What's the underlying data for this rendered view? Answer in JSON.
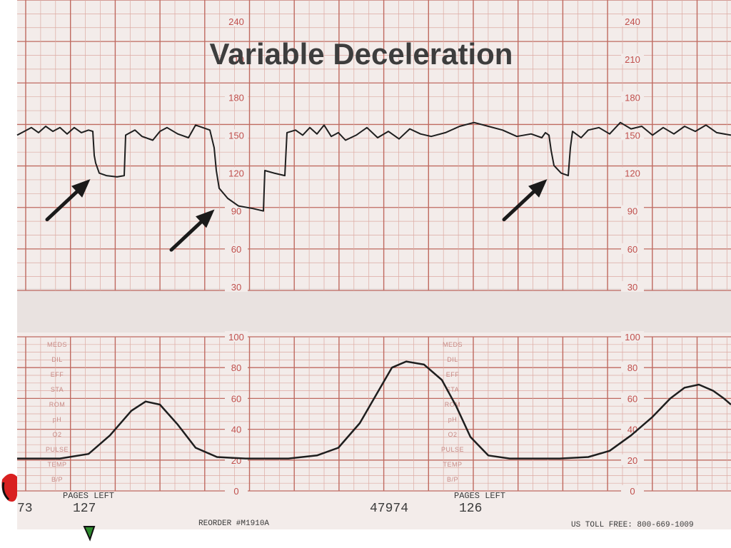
{
  "title": "Variable Deceleration",
  "colors": {
    "paper": "#f3ecea",
    "grid_minor": "#dcaaa2",
    "grid_major": "#bf6a60",
    "trace": "#1e1e1e",
    "scale_text": "#c0504d",
    "arrow": "#1a1a1a"
  },
  "chart_data": [
    {
      "type": "line",
      "name": "fetal-heart-rate",
      "yticks": [
        30,
        60,
        90,
        120,
        150,
        180,
        210,
        240
      ],
      "ylim": [
        30,
        240
      ],
      "xlim": [
        0,
        1
      ],
      "grid": true,
      "series": [
        {
          "points": [
            [
              0.0,
              150
            ],
            [
              0.01,
              153
            ],
            [
              0.02,
              156
            ],
            [
              0.03,
              152
            ],
            [
              0.04,
              157
            ],
            [
              0.05,
              153
            ],
            [
              0.06,
              156
            ],
            [
              0.07,
              151
            ],
            [
              0.08,
              156
            ],
            [
              0.09,
              152
            ],
            [
              0.1,
              154
            ],
            [
              0.106,
              153
            ],
            [
              0.108,
              134
            ],
            [
              0.11,
              128
            ],
            [
              0.115,
              120
            ],
            [
              0.125,
              118
            ],
            [
              0.14,
              117
            ],
            [
              0.15,
              118
            ],
            [
              0.152,
              150
            ],
            [
              0.165,
              154
            ],
            [
              0.175,
              149
            ],
            [
              0.19,
              146
            ],
            [
              0.2,
              153
            ],
            [
              0.21,
              156
            ],
            [
              0.225,
              151
            ],
            [
              0.24,
              148
            ],
            [
              0.25,
              158
            ],
            [
              0.26,
              156
            ],
            [
              0.27,
              154
            ],
            [
              0.276,
              140
            ],
            [
              0.279,
              122
            ],
            [
              0.283,
              108
            ],
            [
              0.295,
              100
            ],
            [
              0.31,
              94
            ],
            [
              0.33,
              92
            ],
            [
              0.345,
              90
            ],
            [
              0.347,
              122
            ],
            [
              0.36,
              120
            ],
            [
              0.375,
              118
            ],
            [
              0.378,
              152
            ],
            [
              0.39,
              154
            ],
            [
              0.4,
              150
            ],
            [
              0.41,
              156
            ],
            [
              0.42,
              151
            ],
            [
              0.43,
              158
            ],
            [
              0.44,
              149
            ],
            [
              0.45,
              152
            ],
            [
              0.46,
              146
            ],
            [
              0.475,
              150
            ],
            [
              0.49,
              156
            ],
            [
              0.505,
              148
            ],
            [
              0.52,
              153
            ],
            [
              0.535,
              147
            ],
            [
              0.55,
              155
            ],
            [
              0.565,
              151
            ],
            [
              0.58,
              149
            ],
            [
              0.6,
              152
            ],
            [
              0.62,
              157
            ],
            [
              0.64,
              160
            ],
            [
              0.66,
              157
            ],
            [
              0.68,
              154
            ],
            [
              0.7,
              149
            ],
            [
              0.72,
              151
            ],
            [
              0.735,
              148
            ],
            [
              0.74,
              152
            ],
            [
              0.745,
              150
            ],
            [
              0.748,
              138
            ],
            [
              0.752,
              126
            ],
            [
              0.762,
              120
            ],
            [
              0.772,
              118
            ],
            [
              0.775,
              140
            ],
            [
              0.778,
              153
            ],
            [
              0.79,
              148
            ],
            [
              0.8,
              154
            ],
            [
              0.815,
              156
            ],
            [
              0.83,
              151
            ],
            [
              0.845,
              160
            ],
            [
              0.86,
              155
            ],
            [
              0.875,
              157
            ],
            [
              0.89,
              150
            ],
            [
              0.905,
              156
            ],
            [
              0.92,
              151
            ],
            [
              0.935,
              157
            ],
            [
              0.95,
              153
            ],
            [
              0.965,
              158
            ],
            [
              0.98,
              152
            ],
            [
              1.0,
              150
            ]
          ]
        }
      ]
    },
    {
      "type": "line",
      "name": "uterine-activity",
      "yticks": [
        0,
        20,
        40,
        60,
        80,
        100
      ],
      "ylim": [
        0,
        100
      ],
      "xlim": [
        0,
        1
      ],
      "grid": true,
      "series": [
        {
          "points": [
            [
              0.0,
              21
            ],
            [
              0.06,
              21
            ],
            [
              0.1,
              24
            ],
            [
              0.13,
              36
            ],
            [
              0.16,
              52
            ],
            [
              0.18,
              58
            ],
            [
              0.2,
              56
            ],
            [
              0.225,
              43
            ],
            [
              0.25,
              28
            ],
            [
              0.28,
              22
            ],
            [
              0.32,
              21
            ],
            [
              0.38,
              21
            ],
            [
              0.42,
              23
            ],
            [
              0.45,
              28
            ],
            [
              0.48,
              44
            ],
            [
              0.505,
              64
            ],
            [
              0.525,
              80
            ],
            [
              0.545,
              84
            ],
            [
              0.57,
              82
            ],
            [
              0.595,
              72
            ],
            [
              0.615,
              55
            ],
            [
              0.635,
              35
            ],
            [
              0.66,
              23
            ],
            [
              0.69,
              21
            ],
            [
              0.76,
              21
            ],
            [
              0.8,
              22
            ],
            [
              0.83,
              26
            ],
            [
              0.86,
              36
            ],
            [
              0.89,
              48
            ],
            [
              0.915,
              60
            ],
            [
              0.935,
              67
            ],
            [
              0.955,
              69
            ],
            [
              0.975,
              65
            ],
            [
              0.99,
              60
            ],
            [
              1.0,
              56
            ]
          ]
        }
      ]
    }
  ],
  "arrows": [
    {
      "x": 0.104,
      "y": 116
    },
    {
      "x": 0.278,
      "y": 92
    },
    {
      "x": 0.744,
      "y": 116
    }
  ],
  "side_labels": [
    "MEDS",
    "DIL",
    "EFF",
    "STA",
    "ROM",
    "pH",
    "O2",
    "PULSE",
    "TEMP",
    "B/P"
  ],
  "paper_text": {
    "pages_left": "PAGES LEFT",
    "page_left_1": "127",
    "page_left_2": "126",
    "strip_left_fragment": "73",
    "serial": "47974",
    "reorder": "REORDER #M1910A",
    "toll_free": "US TOLL FREE: 800-669-1009"
  }
}
